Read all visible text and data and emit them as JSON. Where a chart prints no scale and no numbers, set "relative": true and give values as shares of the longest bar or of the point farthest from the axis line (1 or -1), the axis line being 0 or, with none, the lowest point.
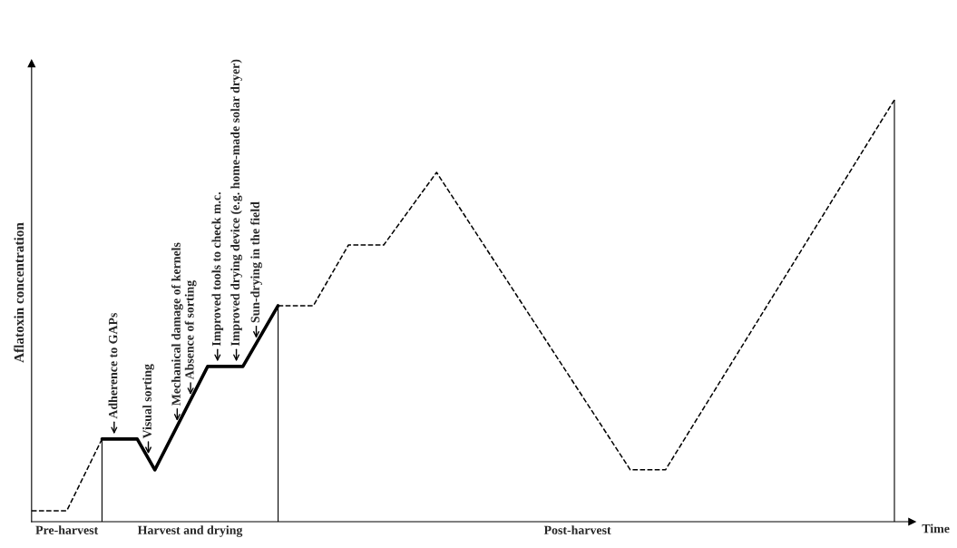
{
  "chart_data": {
    "type": "line",
    "relative": true,
    "xlabel": "Time",
    "ylabel": "Aflatoxin concentration",
    "categories": [
      null,
      null,
      "Pre-harvest",
      null,
      null,
      null,
      null,
      null,
      null,
      "Harvest and drying",
      null,
      null,
      null,
      null,
      null,
      null,
      null,
      null,
      null,
      null,
      null,
      null,
      null,
      null,
      null,
      null,
      null,
      null,
      null,
      null,
      null,
      "Post-harvest",
      null,
      null,
      null,
      null,
      null,
      null,
      null,
      null,
      null,
      null,
      null,
      null,
      null,
      null,
      null,
      null,
      null,
      null
    ],
    "series": [
      {
        "color": "#000000",
        "line_style": "dashed",
        "values": [
          0.026,
          null,
          0.026,
          null,
          0.196,
          null,
          null,
          null,
          null,
          null,
          null,
          null,
          null,
          null,
          null,
          null,
          null,
          null,
          null,
          null,
          null,
          null,
          null,
          null,
          null,
          null,
          null,
          null,
          null,
          null,
          null,
          null,
          null,
          null,
          null,
          null,
          null,
          null,
          null,
          null,
          null,
          null,
          null,
          null,
          null,
          null,
          null,
          null,
          null,
          null
        ]
      },
      {
        "color": "#000000",
        "line_style": "solid",
        "values": [
          null,
          null,
          null,
          null,
          0.196,
          null,
          0.196,
          0.123,
          null,
          null,
          0.368,
          null,
          0.368,
          null,
          0.512,
          null,
          null,
          null,
          null,
          null,
          null,
          null,
          null,
          null,
          null,
          null,
          null,
          null,
          null,
          null,
          null,
          null,
          null,
          null,
          null,
          null,
          null,
          null,
          null,
          null,
          null,
          null,
          null,
          null,
          null,
          null,
          null,
          null,
          null,
          null
        ]
      },
      {
        "color": "#000000",
        "line_style": "dashed",
        "values": [
          null,
          null,
          null,
          null,
          null,
          null,
          null,
          null,
          null,
          null,
          null,
          null,
          null,
          null,
          0.512,
          null,
          0.512,
          null,
          0.656,
          null,
          0.656,
          null,
          null,
          0.828,
          null,
          null,
          null,
          null,
          null,
          null,
          null,
          null,
          null,
          null,
          0.123,
          null,
          0.123,
          null,
          null,
          null,
          null,
          null,
          null,
          null,
          null,
          null,
          null,
          null,
          null,
          1
        ]
      }
    ],
    "annotations": [
      {
        "text": "Adherence to GAPs",
        "y": 0.196
      },
      {
        "text": "Visual sorting",
        "y": 0.149
      },
      {
        "text": "Mechanical damage of kernels",
        "y": 0.227
      },
      {
        "text": "Absence of sorting",
        "y": 0.289
      },
      {
        "text": "Improved tools to check m.c.",
        "y": 0.368
      },
      {
        "text": "Improved drying device (e.g. home-made solar dryer)",
        "y": 0.368
      },
      {
        "text": "Sun-drying in the field",
        "y": 0.423
      }
    ]
  }
}
